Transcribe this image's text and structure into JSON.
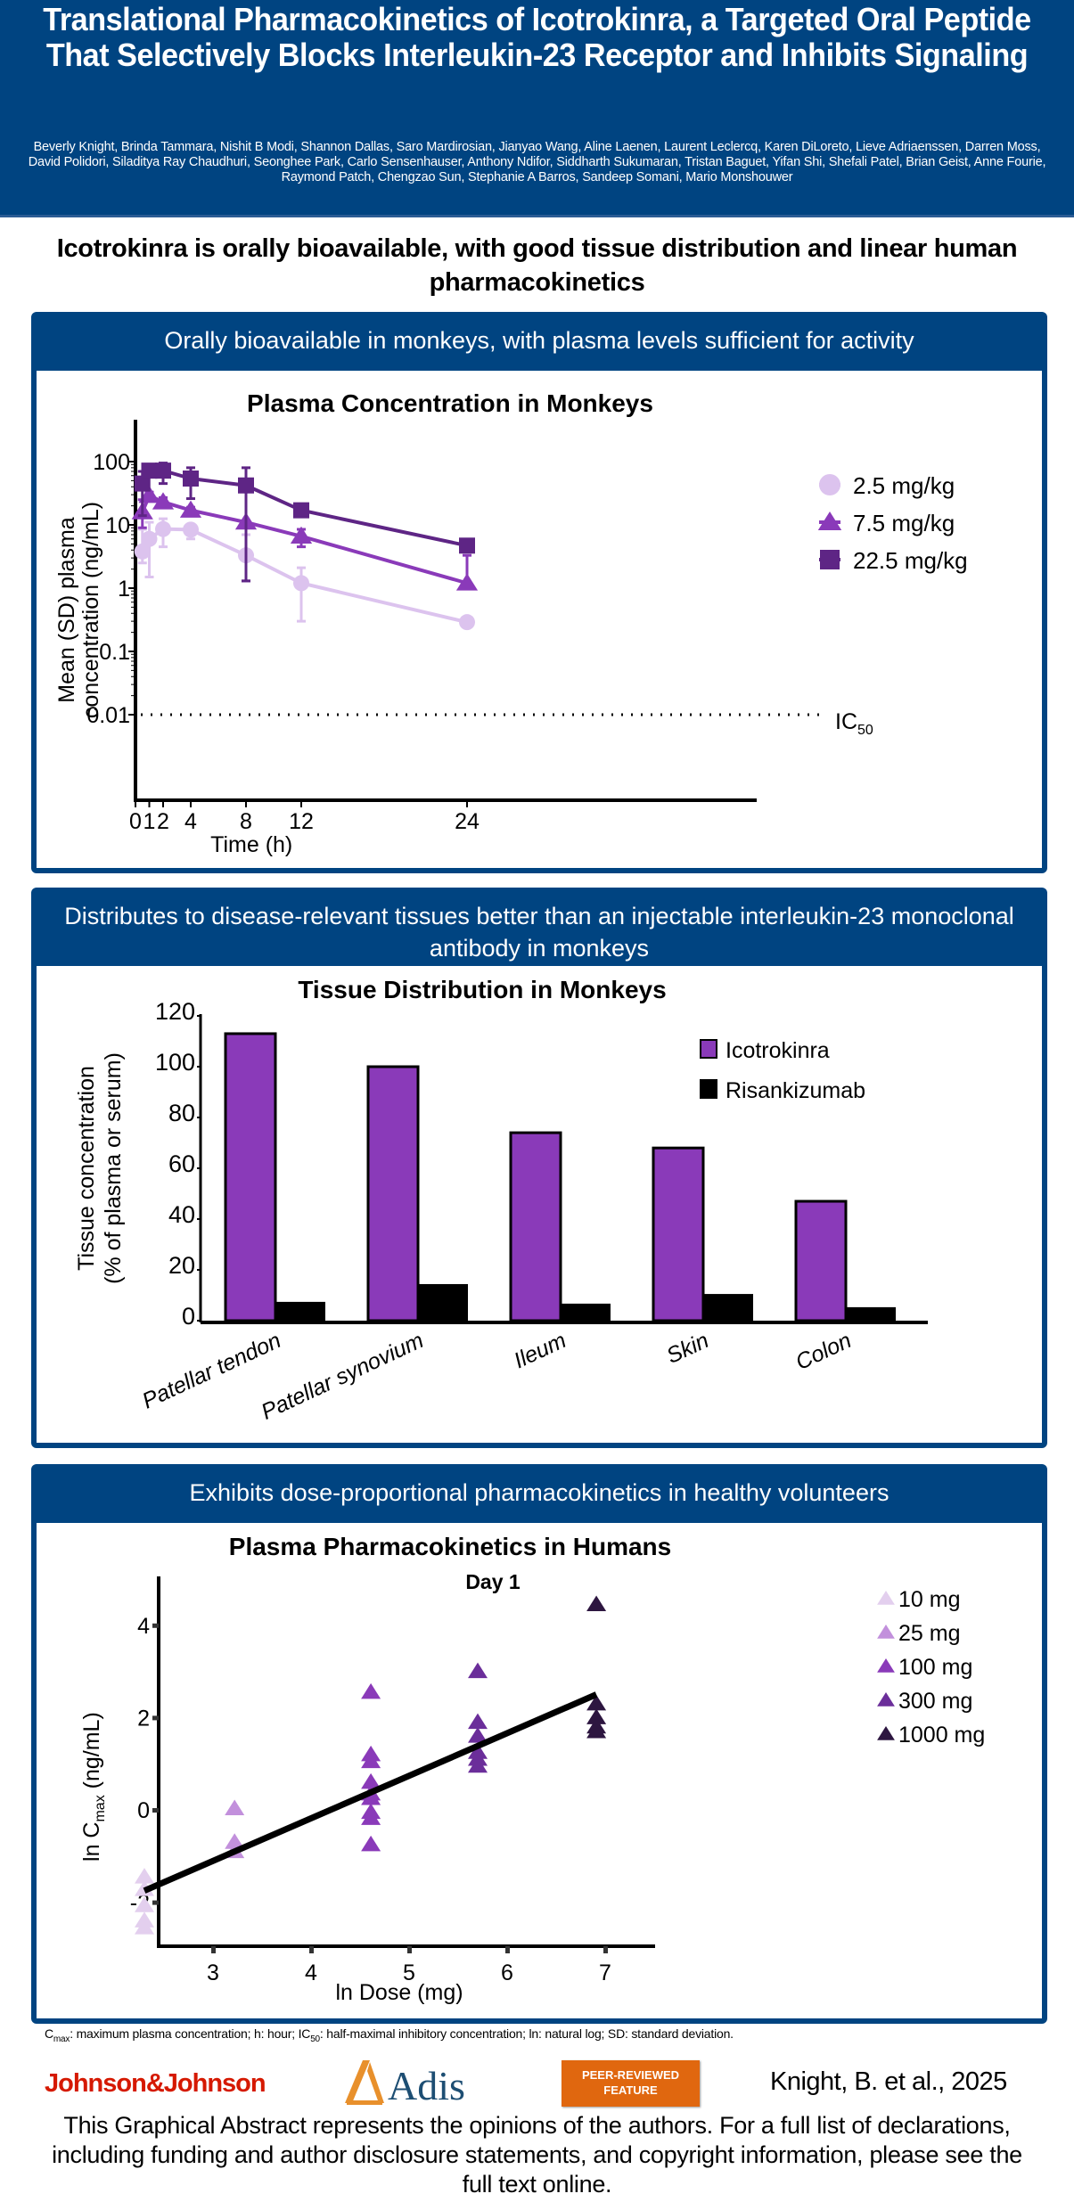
{
  "header": {
    "title": "Translational Pharmacokinetics of Icotrokinra, a Targeted Oral Peptide That Selectively Blocks Interleukin-23 Receptor and Inhibits Signaling",
    "authors": "Beverly Knight, Brinda Tammara, Nishit B Modi, Shannon Dallas, Saro Mardirosian, Jianyao Wang, Aline Laenen, Laurent Leclercq, Karen DiLoreto, Lieve Adriaenssen, Darren Moss, David Polidori, Siladitya Ray Chaudhuri, Seonghee Park, Carlo Sensenhauser, Anthony Ndifor, Siddharth Sukumaran, Tristan Baguet, Yifan Shi, Shefali Patel, Brian Geist, Anne Fourie, Raymond Patch, Chengzao Sun, Stephanie A Barros, Sandeep Somani, Mario Monshouwer"
  },
  "subtitle": "Icotrokinra is orally bioavailable, with good tissue distribution and linear human pharmacokinetics",
  "panels": [
    {
      "heading": "Orally bioavailable in monkeys, with plasma levels sufficient for activity"
    },
    {
      "heading": "Distributes to disease-relevant tissues better than an injectable interleukin-23 monoclonal antibody in monkeys"
    },
    {
      "heading": "Exhibits dose-proportional pharmacokinetics in healthy volunteers"
    }
  ],
  "colors": {
    "brand_blue": "#004481",
    "dose_2_5": "#dcc3ee",
    "dose_7_5": "#8a3ab9",
    "dose_22_5": "#5e2585",
    "icotrokinra": "#8a3ab9",
    "risankizumab": "#000000",
    "h10": "#e3cfee",
    "h25": "#c290dc",
    "h100": "#8a3ab9",
    "h300": "#6b2e9a",
    "h1000": "#2d1640"
  },
  "chart_data": [
    {
      "type": "line",
      "title": "Plasma Concentration in Monkeys",
      "xlabel": "Time (h)",
      "ylabel": "Mean (SD) plasma concentration (ng/mL)",
      "yscale": "log",
      "ylim": [
        0.001,
        150
      ],
      "xlim": [
        0,
        26
      ],
      "xticks": [
        "0",
        "1",
        "2",
        "4",
        "8",
        "12",
        "24"
      ],
      "xtick_values": [
        0,
        1,
        2,
        4,
        8,
        12,
        24
      ],
      "yticks": [
        "100",
        "10",
        "1",
        "0.1",
        "0.01"
      ],
      "ytick_values": [
        100,
        10,
        1,
        0.1,
        0.01
      ],
      "reference_line": {
        "value": 0.01,
        "label": "IC",
        "label_sub": "50",
        "style": "dotted"
      },
      "legend_position": "top-right",
      "series": [
        {
          "name": "2.5 mg/kg",
          "marker": "circle",
          "x": [
            0.5,
            1,
            2,
            4,
            8,
            12,
            24
          ],
          "y": [
            3.8,
            6.0,
            8.6,
            8.4,
            3.3,
            1.2,
            0.29
          ],
          "sd_low": [
            2.5,
            1.5,
            4.5,
            6.0,
            1.3,
            0.3,
            0.29
          ],
          "sd_high": [
            8.5,
            11,
            12.5,
            10,
            7,
            2.1,
            0.29
          ]
        },
        {
          "name": "7.5 mg/kg",
          "marker": "triangle",
          "x": [
            0.5,
            1,
            2,
            4,
            8,
            12,
            24
          ],
          "y": [
            16,
            29,
            23,
            17,
            11,
            6.6,
            1.2
          ],
          "sd_low": [
            9,
            25,
            20,
            15,
            1.3,
            4.5,
            1.2
          ],
          "sd_high": [
            25,
            33,
            27,
            19,
            40,
            8.5,
            3.3
          ]
        },
        {
          "name": "22.5 mg/kg",
          "marker": "square",
          "x": [
            0.5,
            1,
            2,
            4,
            8,
            12,
            24
          ],
          "y": [
            45,
            72,
            72,
            54,
            42,
            17,
            4.7
          ],
          "sd_low": [
            14,
            65,
            45,
            26,
            1.3,
            14,
            4.0
          ],
          "sd_high": [
            70,
            80,
            95,
            80,
            80,
            20,
            5.5
          ]
        }
      ]
    },
    {
      "type": "bar",
      "title": "Tissue Distribution in Monkeys",
      "xlabel": "",
      "ylabel": "Tissue concentration (% of plasma or serum)",
      "ylim": [
        0,
        120
      ],
      "yticks": [
        "0",
        "20",
        "40",
        "60",
        "80",
        "100",
        "120"
      ],
      "ytick_values": [
        0,
        20,
        40,
        60,
        80,
        100,
        120
      ],
      "categories": [
        "Patellar tendon",
        "Patellar synovium",
        "Ileum",
        "Skin",
        "Colon"
      ],
      "legend_position": "top-right",
      "series": [
        {
          "name": "Icotrokinra",
          "values": [
            113,
            100,
            74,
            68,
            47
          ]
        },
        {
          "name": "Risankizumab",
          "values": [
            7.4,
            14.4,
            6.7,
            10.5,
            5.3
          ]
        }
      ]
    },
    {
      "type": "scatter",
      "title": "Plasma Pharmacokinetics in Humans",
      "subtitle": "Day 1",
      "xlabel": "ln Dose (mg)",
      "ylabel": "ln Cmax (ng/mL)",
      "ylabel_main": "ln C",
      "ylabel_sub": "max",
      "ylabel_tail": " (ng/mL)",
      "xlim": [
        2.0,
        7.2
      ],
      "ylim": [
        -2.9,
        4.8
      ],
      "xticks": [
        "3",
        "4",
        "5",
        "6",
        "7"
      ],
      "xtick_values": [
        3,
        4,
        5,
        6,
        7
      ],
      "yticks": [
        "4",
        "2",
        "0",
        "-2"
      ],
      "ytick_values": [
        4,
        2,
        0,
        -2
      ],
      "legend_position": "top-right",
      "series": [
        {
          "name": "10 mg",
          "x": 2.3,
          "y": [
            -1.45,
            -1.72,
            -2.07,
            -2.4,
            -2.55
          ]
        },
        {
          "name": "25 mg",
          "x": 3.22,
          "y": [
            0.03,
            -0.7,
            -0.9
          ]
        },
        {
          "name": "100 mg",
          "x": 4.61,
          "y": [
            2.55,
            1.2,
            1.05,
            0.6,
            0.35,
            0.25,
            -0.05,
            -0.18,
            -0.75
          ]
        },
        {
          "name": "300 mg",
          "x": 5.7,
          "y": [
            3.0,
            1.9,
            1.6,
            1.25,
            1.1,
            0.95
          ]
        },
        {
          "name": "1000 mg",
          "x": 6.91,
          "y": [
            4.45,
            2.3,
            2.0,
            1.8,
            1.7
          ]
        }
      ],
      "fit_line": {
        "x": [
          2.3,
          6.91
        ],
        "y": [
          -1.75,
          2.5
        ]
      }
    }
  ],
  "footer": {
    "footnote_cmax": "C",
    "footnote_cmax_sub": "max",
    "footnote_part2": ": maximum plasma concentration; h: hour; IC",
    "footnote_ic_sub": "50",
    "footnote_part3": ": half-maximal inhibitory concentration; ln: natural log; SD: standard deviation.",
    "jj_logo": "Johnson&Johnson",
    "adis_logo": "Adis",
    "badge_line1": "PEER-REVIEWED",
    "badge_line2": "FEATURE",
    "citation": "Knight, B. et al., 2025",
    "disclaimer": "This Graphical Abstract represents the opinions of the authors. For a full list of declarations, including funding and author disclosure statements, and copyright information, please see the full text online."
  }
}
